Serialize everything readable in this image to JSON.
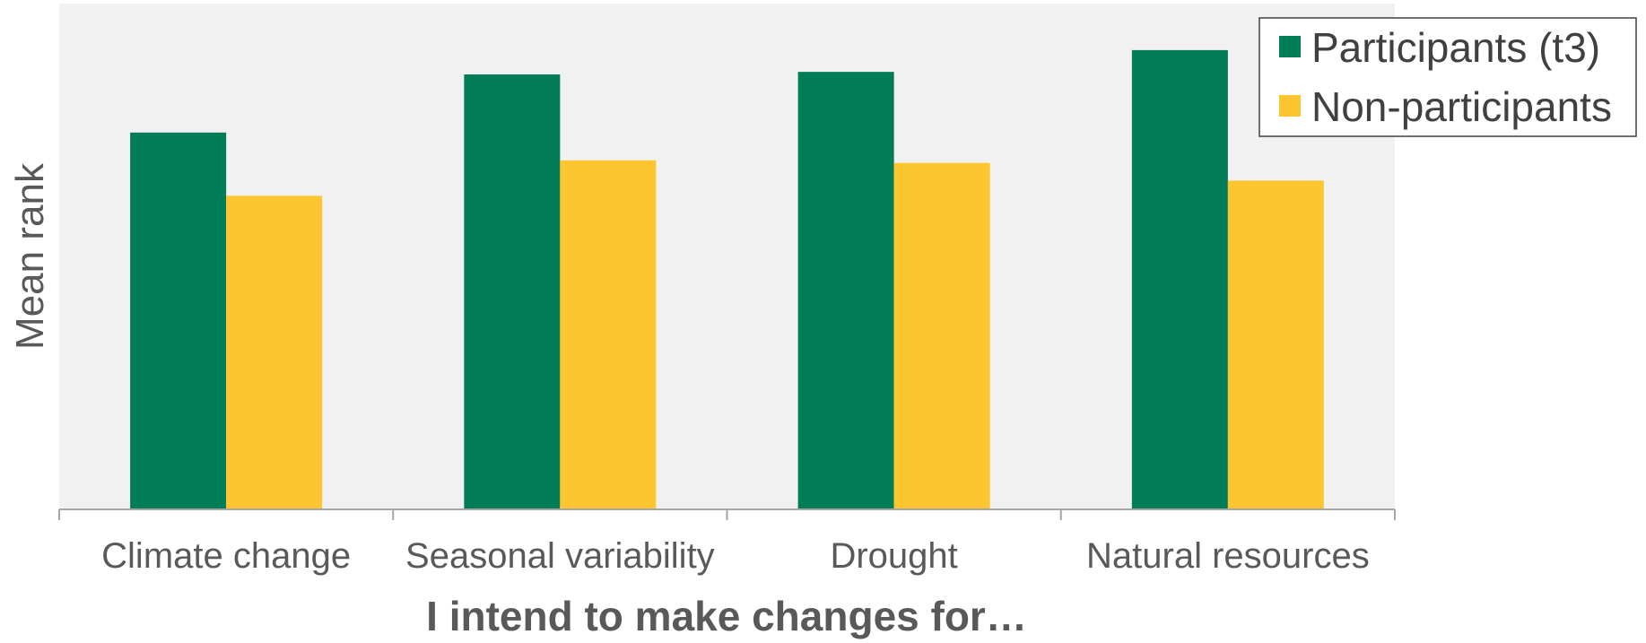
{
  "chart_data": {
    "type": "bar",
    "title": "",
    "xlabel": "I intend to make changes for…",
    "ylabel": "Mean rank",
    "categories": [
      "Climate change",
      "Seasonal variability",
      "Drought",
      "Natural resources"
    ],
    "series": [
      {
        "name": "Participants (t3)",
        "values": [
          74.5,
          86,
          86.5,
          90.8
        ]
      },
      {
        "name": "Non-participants",
        "values": [
          62,
          69,
          68.5,
          65
        ]
      }
    ],
    "ylim": [
      0,
      100
    ],
    "grid": false,
    "legend": "top-right",
    "colors": {
      "Participants (t3)": "#007d57",
      "Non-participants": "#fdc630",
      "plot_background": "#f1f1f1",
      "axis": "#a6a6a6"
    }
  }
}
